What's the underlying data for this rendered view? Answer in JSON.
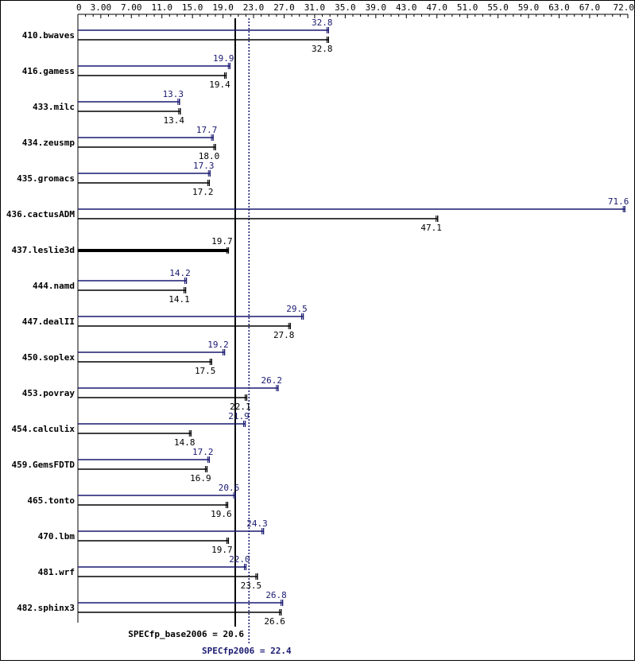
{
  "colors": {
    "base": "#000000",
    "peak": "#191970"
  },
  "chart_data": {
    "type": "bar",
    "orientation": "horizontal",
    "xlim": [
      0,
      72.0
    ],
    "ticks": [
      "0",
      "3.00",
      "7.00",
      "11.0",
      "15.0",
      "19.0",
      "23.0",
      "27.0",
      "31.0",
      "35.0",
      "39.0",
      "43.0",
      "47.0",
      "51.0",
      "55.0",
      "59.0",
      "63.0",
      "67.0",
      "72.0"
    ],
    "tick_values": [
      0,
      3,
      7,
      11,
      15,
      19,
      23,
      27,
      31,
      35,
      39,
      43,
      47,
      51,
      55,
      59,
      63,
      67,
      72
    ],
    "categories": [
      "410.bwaves",
      "416.gamess",
      "433.milc",
      "434.zeusmp",
      "435.gromacs",
      "436.cactusADM",
      "437.leslie3d",
      "444.namd",
      "447.dealII",
      "450.soplex",
      "453.povray",
      "454.calculix",
      "459.GemsFDTD",
      "465.tonto",
      "470.lbm",
      "481.wrf",
      "482.sphinx3"
    ],
    "series": [
      {
        "key": "peak",
        "values": [
          32.8,
          19.9,
          13.3,
          17.7,
          17.3,
          71.6,
          null,
          14.2,
          29.5,
          19.2,
          26.2,
          21.9,
          17.2,
          20.6,
          24.3,
          22.0,
          26.8
        ]
      },
      {
        "key": "base",
        "values": [
          32.8,
          19.4,
          13.4,
          18.0,
          17.2,
          47.1,
          19.7,
          14.1,
          27.8,
          17.5,
          22.1,
          14.8,
          16.9,
          19.6,
          19.7,
          23.5,
          26.6
        ]
      }
    ],
    "peak_labels": [
      "32.8",
      "19.9",
      "13.3",
      "17.7",
      "17.3",
      "71.6",
      "",
      "14.2",
      "29.5",
      "19.2",
      "26.2",
      "21.9",
      "17.2",
      "20.6",
      "24.3",
      "22.0",
      "26.8"
    ],
    "base_labels": [
      "32.8",
      "19.4",
      "13.4",
      "18.0",
      "17.2",
      "47.1",
      "19.7",
      "14.1",
      "27.8",
      "17.5",
      "22.1",
      "14.8",
      "16.9",
      "19.6",
      "19.7",
      "23.5",
      "26.6"
    ],
    "reference_lines": [
      {
        "key": "base",
        "value": 20.6,
        "label": "SPECfp_base2006 = 20.6"
      },
      {
        "key": "peak",
        "value": 22.4,
        "label": "SPECfp2006 = 22.4"
      }
    ]
  }
}
